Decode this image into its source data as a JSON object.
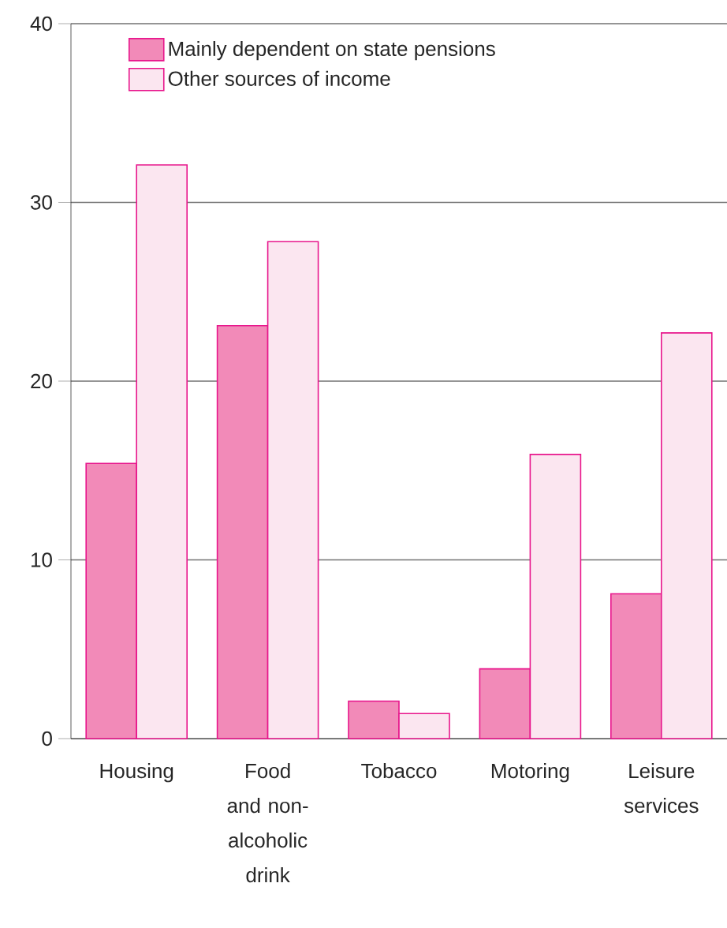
{
  "chart_data": {
    "type": "bar",
    "categories": [
      "Housing",
      "Food and non-alcoholic drink",
      "Tobacco",
      "Motoring",
      "Leisure services"
    ],
    "series": [
      {
        "name": "Mainly dependent on state pensions",
        "color": "#f28ab8",
        "values": [
          15.4,
          23.1,
          2.1,
          3.9,
          8.1
        ]
      },
      {
        "name": "Other sources of income",
        "color": "#fbe6f0",
        "values": [
          32.1,
          27.8,
          1.4,
          15.9,
          22.7
        ]
      }
    ],
    "ylim": [
      0,
      40
    ],
    "yticks": [
      0,
      10,
      20,
      30,
      40
    ],
    "grid": "y",
    "legend": "top left"
  }
}
